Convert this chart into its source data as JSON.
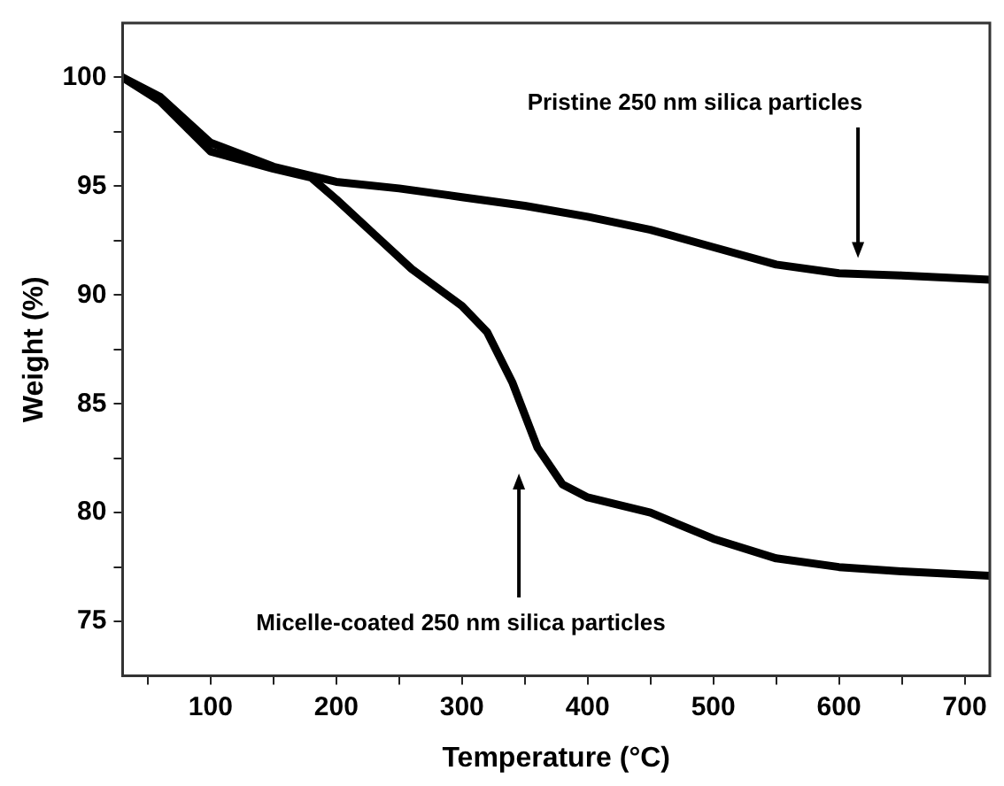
{
  "chart_data": {
    "type": "line",
    "xlabel": "Temperature (°C)",
    "ylabel": "Weight (%)",
    "xlim": [
      30,
      720
    ],
    "ylim": [
      72.5,
      102.5
    ],
    "xticks": [
      {
        "value": 50,
        "label": null
      },
      100,
      {
        "value": 150,
        "label": null
      },
      200,
      {
        "value": 250,
        "label": null
      },
      300,
      {
        "value": 350,
        "label": null
      },
      400,
      {
        "value": 450,
        "label": null
      },
      500,
      {
        "value": 550,
        "label": null
      },
      600,
      {
        "value": 650,
        "label": null
      },
      700
    ],
    "yticks": [
      75,
      {
        "value": 77.5,
        "label": null
      },
      80,
      {
        "value": 82.5,
        "label": null
      },
      85,
      {
        "value": 87.5,
        "label": null
      },
      90,
      {
        "value": 92.5,
        "label": null
      },
      95,
      {
        "value": 97.5,
        "label": null
      },
      100
    ],
    "marker": "none",
    "line_style": "solid",
    "series": [
      {
        "color": "#000000",
        "x": [
          30,
          60,
          100,
          150,
          200,
          250,
          300,
          350,
          400,
          450,
          500,
          550,
          600,
          650,
          720
        ],
        "values": [
          100,
          99.1,
          97.0,
          95.9,
          95.2,
          94.9,
          94.5,
          94.1,
          93.6,
          93.0,
          92.2,
          91.4,
          91.0,
          90.9,
          90.7
        ]
      },
      {
        "color": "#000000",
        "x": [
          30,
          60,
          100,
          150,
          180,
          200,
          230,
          260,
          300,
          320,
          340,
          360,
          380,
          400,
          450,
          500,
          550,
          600,
          650,
          720
        ],
        "values": [
          100,
          98.9,
          96.6,
          95.8,
          95.4,
          94.4,
          92.8,
          91.2,
          89.5,
          88.3,
          86.0,
          83.0,
          81.3,
          80.7,
          80.0,
          78.8,
          77.9,
          77.5,
          77.3,
          77.1
        ]
      }
    ],
    "annotations": [
      "Pristine 250 nm silica particles",
      "Micelle-coated 250 nm silica particles"
    ]
  }
}
